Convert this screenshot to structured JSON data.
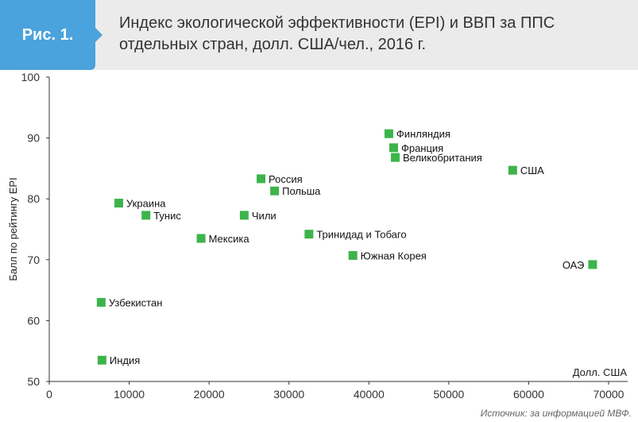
{
  "figure": {
    "badge": "Рис. 1.",
    "title": "Индекс экологической эффективности (EPI) и ВВП за ППС отдельных стран, долл. США/чел., 2016 г.",
    "source": "Источник: за информацией МВФ."
  },
  "chart_data": {
    "type": "scatter",
    "title": "Индекс экологической эффективности (EPI) и ВВП за ППС отдельных стран, долл. США/чел., 2016 г.",
    "xlabel": "Долл. США",
    "ylabel": "Балл по рейтингу EPI",
    "xlim": [
      0,
      70000
    ],
    "ylim": [
      50,
      100
    ],
    "xticks": [
      0,
      10000,
      20000,
      30000,
      40000,
      50000,
      60000,
      70000
    ],
    "yticks": [
      50,
      60,
      70,
      80,
      90,
      100
    ],
    "grid": false,
    "marker_color": "#3cb44b",
    "points": [
      {
        "label": "Финляндия",
        "x": 42500,
        "y": 90.7,
        "label_side": "right"
      },
      {
        "label": "Франция",
        "x": 43100,
        "y": 88.4,
        "label_side": "right"
      },
      {
        "label": "Великобритания",
        "x": 43300,
        "y": 86.8,
        "label_side": "right"
      },
      {
        "label": "США",
        "x": 58000,
        "y": 84.7,
        "label_side": "right"
      },
      {
        "label": "Россия",
        "x": 26500,
        "y": 83.3,
        "label_side": "right"
      },
      {
        "label": "Польша",
        "x": 28200,
        "y": 81.3,
        "label_side": "right"
      },
      {
        "label": "Украина",
        "x": 8700,
        "y": 79.3,
        "label_side": "right"
      },
      {
        "label": "Тунис",
        "x": 12100,
        "y": 77.3,
        "label_side": "right"
      },
      {
        "label": "Чили",
        "x": 24400,
        "y": 77.3,
        "label_side": "right"
      },
      {
        "label": "Мексика",
        "x": 19000,
        "y": 73.5,
        "label_side": "right"
      },
      {
        "label": "Тринидад и Тобаго",
        "x": 32500,
        "y": 74.2,
        "label_side": "right"
      },
      {
        "label": "Южная Корея",
        "x": 38000,
        "y": 70.7,
        "label_side": "right"
      },
      {
        "label": "ОАЭ",
        "x": 68000,
        "y": 69.2,
        "label_side": "left"
      },
      {
        "label": "Узбекистан",
        "x": 6500,
        "y": 63.0,
        "label_side": "right"
      },
      {
        "label": "Индия",
        "x": 6600,
        "y": 53.5,
        "label_side": "right"
      }
    ]
  }
}
